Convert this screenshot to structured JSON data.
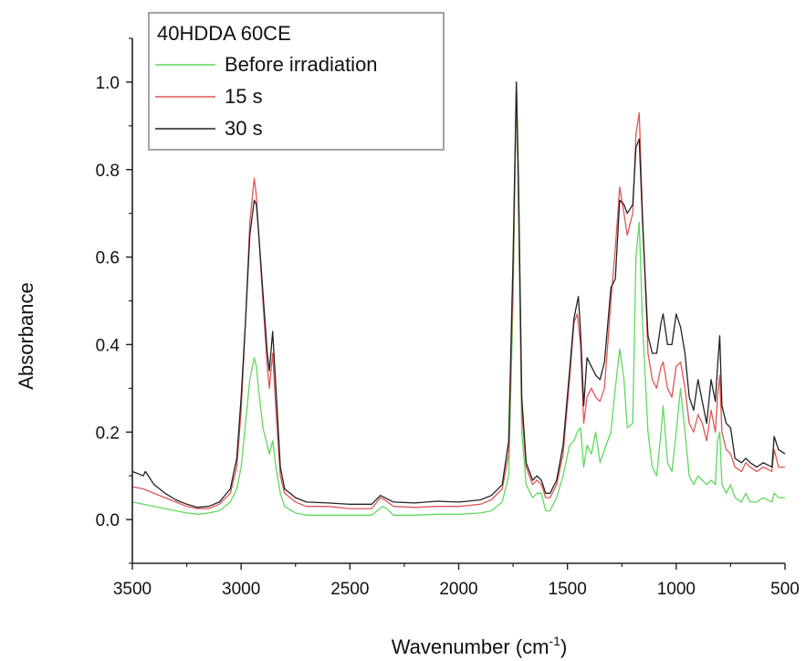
{
  "chart_data": {
    "type": "line",
    "title": "",
    "xlabel": "Wavenumber (cm-1)",
    "xlabel_main": "Wavenumber (cm",
    "xlabel_sup": "-1",
    "xlabel_close": ")",
    "ylabel": "Absorbance",
    "xlim": [
      3500,
      500
    ],
    "x_reversed": true,
    "ylim": [
      -0.1,
      1.1
    ],
    "x_ticks": [
      3500,
      3000,
      2500,
      2000,
      1500,
      1000,
      500
    ],
    "x_tick_labels": [
      "3500",
      "3000",
      "2500",
      "2000",
      "1500",
      "1000",
      "500"
    ],
    "y_ticks": [
      0.0,
      0.2,
      0.4,
      0.6,
      0.8,
      1.0
    ],
    "y_tick_labels": [
      "0.0",
      "0.2",
      "0.4",
      "0.6",
      "0.8",
      "1.0"
    ],
    "grid": false,
    "legend_position": "top-left",
    "legend_title": "40HDDA 60CE",
    "series": [
      {
        "name": "Before irradiation",
        "color": "#5fd85f",
        "points": [
          [
            3500,
            0.04
          ],
          [
            3450,
            0.035
          ],
          [
            3400,
            0.03
          ],
          [
            3350,
            0.025
          ],
          [
            3300,
            0.02
          ],
          [
            3250,
            0.015
          ],
          [
            3200,
            0.012
          ],
          [
            3150,
            0.015
          ],
          [
            3100,
            0.02
          ],
          [
            3050,
            0.04
          ],
          [
            3020,
            0.07
          ],
          [
            3000,
            0.12
          ],
          [
            2980,
            0.22
          ],
          [
            2960,
            0.32
          ],
          [
            2940,
            0.37
          ],
          [
            2930,
            0.35
          ],
          [
            2920,
            0.3
          ],
          [
            2900,
            0.21
          ],
          [
            2880,
            0.17
          ],
          [
            2870,
            0.15
          ],
          [
            2855,
            0.18
          ],
          [
            2840,
            0.12
          ],
          [
            2820,
            0.06
          ],
          [
            2800,
            0.03
          ],
          [
            2750,
            0.015
          ],
          [
            2700,
            0.01
          ],
          [
            2600,
            0.01
          ],
          [
            2500,
            0.01
          ],
          [
            2400,
            0.01
          ],
          [
            2350,
            0.03
          ],
          [
            2330,
            0.025
          ],
          [
            2300,
            0.01
          ],
          [
            2200,
            0.01
          ],
          [
            2100,
            0.012
          ],
          [
            2000,
            0.012
          ],
          [
            1900,
            0.015
          ],
          [
            1850,
            0.02
          ],
          [
            1800,
            0.04
          ],
          [
            1770,
            0.1
          ],
          [
            1750,
            0.5
          ],
          [
            1735,
            0.99
          ],
          [
            1725,
            0.7
          ],
          [
            1710,
            0.2
          ],
          [
            1690,
            0.08
          ],
          [
            1660,
            0.05
          ],
          [
            1640,
            0.06
          ],
          [
            1620,
            0.06
          ],
          [
            1600,
            0.02
          ],
          [
            1580,
            0.02
          ],
          [
            1550,
            0.05
          ],
          [
            1520,
            0.1
          ],
          [
            1490,
            0.17
          ],
          [
            1470,
            0.18
          ],
          [
            1455,
            0.2
          ],
          [
            1440,
            0.21
          ],
          [
            1425,
            0.12
          ],
          [
            1410,
            0.17
          ],
          [
            1390,
            0.15
          ],
          [
            1370,
            0.2
          ],
          [
            1350,
            0.13
          ],
          [
            1330,
            0.16
          ],
          [
            1300,
            0.2
          ],
          [
            1280,
            0.3
          ],
          [
            1260,
            0.39
          ],
          [
            1240,
            0.32
          ],
          [
            1225,
            0.21
          ],
          [
            1200,
            0.22
          ],
          [
            1185,
            0.6
          ],
          [
            1170,
            0.68
          ],
          [
            1155,
            0.45
          ],
          [
            1130,
            0.2
          ],
          [
            1110,
            0.12
          ],
          [
            1090,
            0.1
          ],
          [
            1070,
            0.2
          ],
          [
            1060,
            0.26
          ],
          [
            1040,
            0.13
          ],
          [
            1020,
            0.11
          ],
          [
            1000,
            0.2
          ],
          [
            980,
            0.3
          ],
          [
            960,
            0.2
          ],
          [
            940,
            0.1
          ],
          [
            920,
            0.08
          ],
          [
            900,
            0.1
          ],
          [
            880,
            0.09
          ],
          [
            860,
            0.08
          ],
          [
            840,
            0.09
          ],
          [
            820,
            0.08
          ],
          [
            810,
            0.18
          ],
          [
            800,
            0.2
          ],
          [
            790,
            0.08
          ],
          [
            770,
            0.06
          ],
          [
            750,
            0.08
          ],
          [
            730,
            0.05
          ],
          [
            700,
            0.04
          ],
          [
            680,
            0.06
          ],
          [
            660,
            0.04
          ],
          [
            630,
            0.04
          ],
          [
            600,
            0.05
          ],
          [
            560,
            0.04
          ],
          [
            550,
            0.06
          ],
          [
            530,
            0.05
          ],
          [
            500,
            0.05
          ]
        ]
      },
      {
        "name": "15 s",
        "color": "#e05555",
        "points": [
          [
            3500,
            0.075
          ],
          [
            3450,
            0.07
          ],
          [
            3400,
            0.06
          ],
          [
            3350,
            0.05
          ],
          [
            3300,
            0.04
          ],
          [
            3250,
            0.03
          ],
          [
            3200,
            0.025
          ],
          [
            3150,
            0.025
          ],
          [
            3100,
            0.035
          ],
          [
            3050,
            0.06
          ],
          [
            3020,
            0.12
          ],
          [
            3000,
            0.25
          ],
          [
            2980,
            0.45
          ],
          [
            2960,
            0.68
          ],
          [
            2940,
            0.78
          ],
          [
            2930,
            0.74
          ],
          [
            2920,
            0.66
          ],
          [
            2900,
            0.5
          ],
          [
            2880,
            0.35
          ],
          [
            2870,
            0.3
          ],
          [
            2855,
            0.38
          ],
          [
            2840,
            0.25
          ],
          [
            2820,
            0.1
          ],
          [
            2800,
            0.06
          ],
          [
            2750,
            0.04
          ],
          [
            2700,
            0.03
          ],
          [
            2600,
            0.03
          ],
          [
            2500,
            0.025
          ],
          [
            2400,
            0.025
          ],
          [
            2360,
            0.05
          ],
          [
            2340,
            0.045
          ],
          [
            2300,
            0.03
          ],
          [
            2200,
            0.028
          ],
          [
            2100,
            0.03
          ],
          [
            2000,
            0.03
          ],
          [
            1900,
            0.035
          ],
          [
            1850,
            0.045
          ],
          [
            1800,
            0.07
          ],
          [
            1770,
            0.15
          ],
          [
            1750,
            0.55
          ],
          [
            1735,
            1.0
          ],
          [
            1725,
            0.75
          ],
          [
            1710,
            0.25
          ],
          [
            1690,
            0.12
          ],
          [
            1660,
            0.08
          ],
          [
            1640,
            0.09
          ],
          [
            1620,
            0.08
          ],
          [
            1600,
            0.05
          ],
          [
            1580,
            0.05
          ],
          [
            1550,
            0.08
          ],
          [
            1520,
            0.15
          ],
          [
            1490,
            0.32
          ],
          [
            1470,
            0.45
          ],
          [
            1455,
            0.47
          ],
          [
            1440,
            0.4
          ],
          [
            1425,
            0.22
          ],
          [
            1410,
            0.28
          ],
          [
            1390,
            0.3
          ],
          [
            1370,
            0.28
          ],
          [
            1350,
            0.27
          ],
          [
            1330,
            0.3
          ],
          [
            1300,
            0.5
          ],
          [
            1280,
            0.62
          ],
          [
            1260,
            0.76
          ],
          [
            1240,
            0.7
          ],
          [
            1225,
            0.65
          ],
          [
            1200,
            0.7
          ],
          [
            1185,
            0.88
          ],
          [
            1170,
            0.93
          ],
          [
            1155,
            0.7
          ],
          [
            1130,
            0.38
          ],
          [
            1110,
            0.32
          ],
          [
            1090,
            0.3
          ],
          [
            1070,
            0.35
          ],
          [
            1060,
            0.36
          ],
          [
            1040,
            0.3
          ],
          [
            1020,
            0.28
          ],
          [
            1000,
            0.35
          ],
          [
            980,
            0.36
          ],
          [
            960,
            0.3
          ],
          [
            940,
            0.22
          ],
          [
            920,
            0.2
          ],
          [
            900,
            0.24
          ],
          [
            880,
            0.22
          ],
          [
            860,
            0.18
          ],
          [
            840,
            0.25
          ],
          [
            820,
            0.2
          ],
          [
            810,
            0.28
          ],
          [
            800,
            0.33
          ],
          [
            790,
            0.2
          ],
          [
            770,
            0.16
          ],
          [
            750,
            0.15
          ],
          [
            730,
            0.12
          ],
          [
            700,
            0.11
          ],
          [
            680,
            0.13
          ],
          [
            660,
            0.12
          ],
          [
            630,
            0.11
          ],
          [
            600,
            0.12
          ],
          [
            560,
            0.11
          ],
          [
            550,
            0.16
          ],
          [
            530,
            0.12
          ],
          [
            500,
            0.12
          ]
        ]
      },
      {
        "name": "30 s",
        "color": "#222222",
        "points": [
          [
            3500,
            0.11
          ],
          [
            3450,
            0.1
          ],
          [
            3440,
            0.11
          ],
          [
            3400,
            0.08
          ],
          [
            3350,
            0.06
          ],
          [
            3300,
            0.045
          ],
          [
            3250,
            0.035
          ],
          [
            3200,
            0.028
          ],
          [
            3150,
            0.03
          ],
          [
            3100,
            0.04
          ],
          [
            3050,
            0.07
          ],
          [
            3020,
            0.14
          ],
          [
            3000,
            0.28
          ],
          [
            2980,
            0.45
          ],
          [
            2960,
            0.65
          ],
          [
            2940,
            0.73
          ],
          [
            2930,
            0.72
          ],
          [
            2920,
            0.66
          ],
          [
            2900,
            0.52
          ],
          [
            2880,
            0.38
          ],
          [
            2870,
            0.34
          ],
          [
            2855,
            0.43
          ],
          [
            2840,
            0.3
          ],
          [
            2820,
            0.12
          ],
          [
            2800,
            0.07
          ],
          [
            2750,
            0.05
          ],
          [
            2700,
            0.04
          ],
          [
            2600,
            0.038
          ],
          [
            2500,
            0.035
          ],
          [
            2400,
            0.035
          ],
          [
            2360,
            0.055
          ],
          [
            2340,
            0.05
          ],
          [
            2300,
            0.04
          ],
          [
            2200,
            0.038
          ],
          [
            2100,
            0.042
          ],
          [
            2000,
            0.04
          ],
          [
            1900,
            0.045
          ],
          [
            1850,
            0.055
          ],
          [
            1800,
            0.08
          ],
          [
            1770,
            0.18
          ],
          [
            1750,
            0.6
          ],
          [
            1735,
            1.0
          ],
          [
            1725,
            0.78
          ],
          [
            1710,
            0.28
          ],
          [
            1690,
            0.13
          ],
          [
            1660,
            0.09
          ],
          [
            1640,
            0.1
          ],
          [
            1620,
            0.09
          ],
          [
            1600,
            0.06
          ],
          [
            1580,
            0.06
          ],
          [
            1550,
            0.09
          ],
          [
            1520,
            0.17
          ],
          [
            1490,
            0.34
          ],
          [
            1470,
            0.46
          ],
          [
            1450,
            0.51
          ],
          [
            1440,
            0.43
          ],
          [
            1425,
            0.26
          ],
          [
            1410,
            0.37
          ],
          [
            1390,
            0.35
          ],
          [
            1370,
            0.33
          ],
          [
            1350,
            0.32
          ],
          [
            1330,
            0.36
          ],
          [
            1300,
            0.53
          ],
          [
            1280,
            0.55
          ],
          [
            1260,
            0.73
          ],
          [
            1240,
            0.72
          ],
          [
            1225,
            0.7
          ],
          [
            1200,
            0.72
          ],
          [
            1185,
            0.85
          ],
          [
            1170,
            0.87
          ],
          [
            1155,
            0.68
          ],
          [
            1130,
            0.42
          ],
          [
            1110,
            0.38
          ],
          [
            1090,
            0.38
          ],
          [
            1070,
            0.45
          ],
          [
            1060,
            0.47
          ],
          [
            1040,
            0.4
          ],
          [
            1020,
            0.4
          ],
          [
            1000,
            0.47
          ],
          [
            980,
            0.44
          ],
          [
            960,
            0.38
          ],
          [
            940,
            0.28
          ],
          [
            920,
            0.25
          ],
          [
            900,
            0.32
          ],
          [
            880,
            0.27
          ],
          [
            860,
            0.22
          ],
          [
            840,
            0.32
          ],
          [
            820,
            0.27
          ],
          [
            810,
            0.35
          ],
          [
            800,
            0.42
          ],
          [
            790,
            0.26
          ],
          [
            770,
            0.22
          ],
          [
            750,
            0.21
          ],
          [
            730,
            0.14
          ],
          [
            700,
            0.13
          ],
          [
            680,
            0.14
          ],
          [
            660,
            0.13
          ],
          [
            630,
            0.12
          ],
          [
            600,
            0.13
          ],
          [
            560,
            0.12
          ],
          [
            550,
            0.19
          ],
          [
            530,
            0.16
          ],
          [
            500,
            0.15
          ]
        ]
      }
    ]
  }
}
